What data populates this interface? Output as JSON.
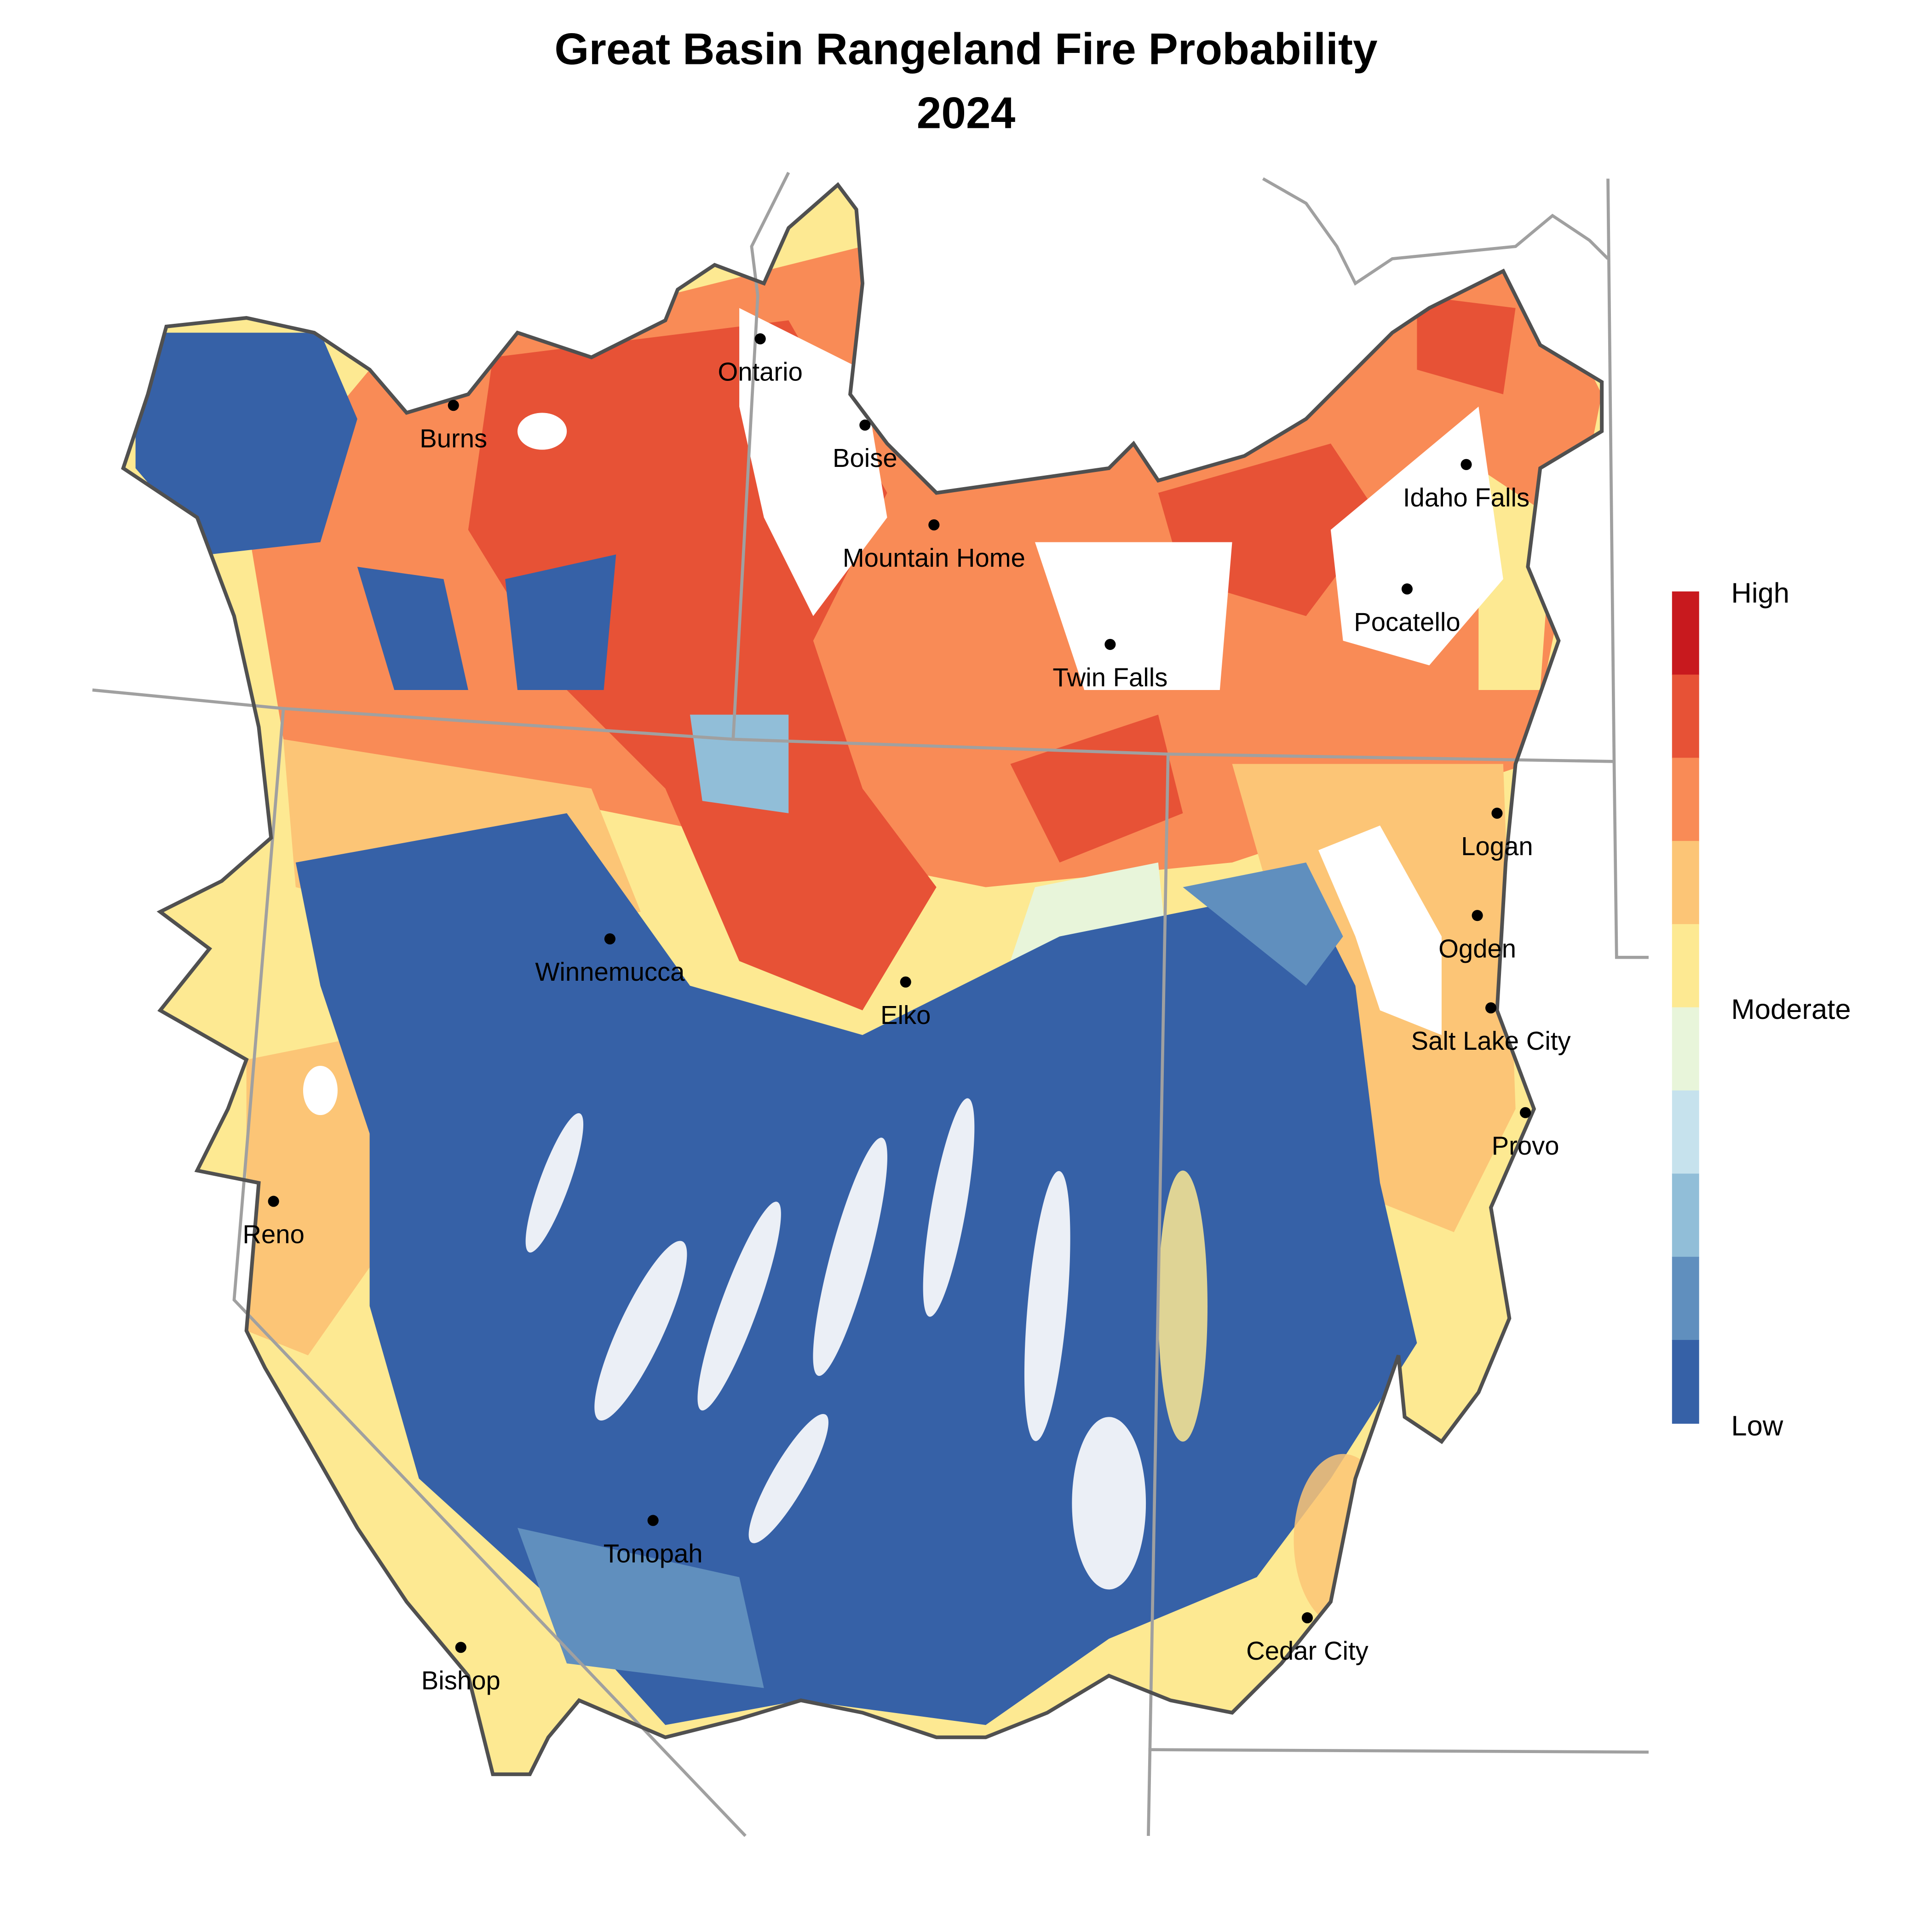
{
  "title": {
    "line1": "Great Basin Rangeland Fire Probability",
    "line2": "2024"
  },
  "legend": {
    "labels": {
      "high": "High",
      "moderate": "Moderate",
      "low": "Low"
    },
    "colors": [
      "#c8191e",
      "#e75236",
      "#f98b56",
      "#fcc576",
      "#fde992",
      "#e8f5da",
      "#c6e2ed",
      "#91bed8",
      "#608fbe",
      "#3661a7"
    ]
  },
  "cities": [
    {
      "name": "Ontario"
    },
    {
      "name": "Burns"
    },
    {
      "name": "Boise"
    },
    {
      "name": "Mountain Home"
    },
    {
      "name": "Idaho Falls"
    },
    {
      "name": "Pocatello"
    },
    {
      "name": "Twin Falls"
    },
    {
      "name": "Logan"
    },
    {
      "name": "Ogden"
    },
    {
      "name": "Winnemucca"
    },
    {
      "name": "Elko"
    },
    {
      "name": "Salt Lake City"
    },
    {
      "name": "Provo"
    },
    {
      "name": "Reno"
    },
    {
      "name": "Tonopah"
    },
    {
      "name": "Cedar City"
    },
    {
      "name": "Bishop"
    }
  ]
}
